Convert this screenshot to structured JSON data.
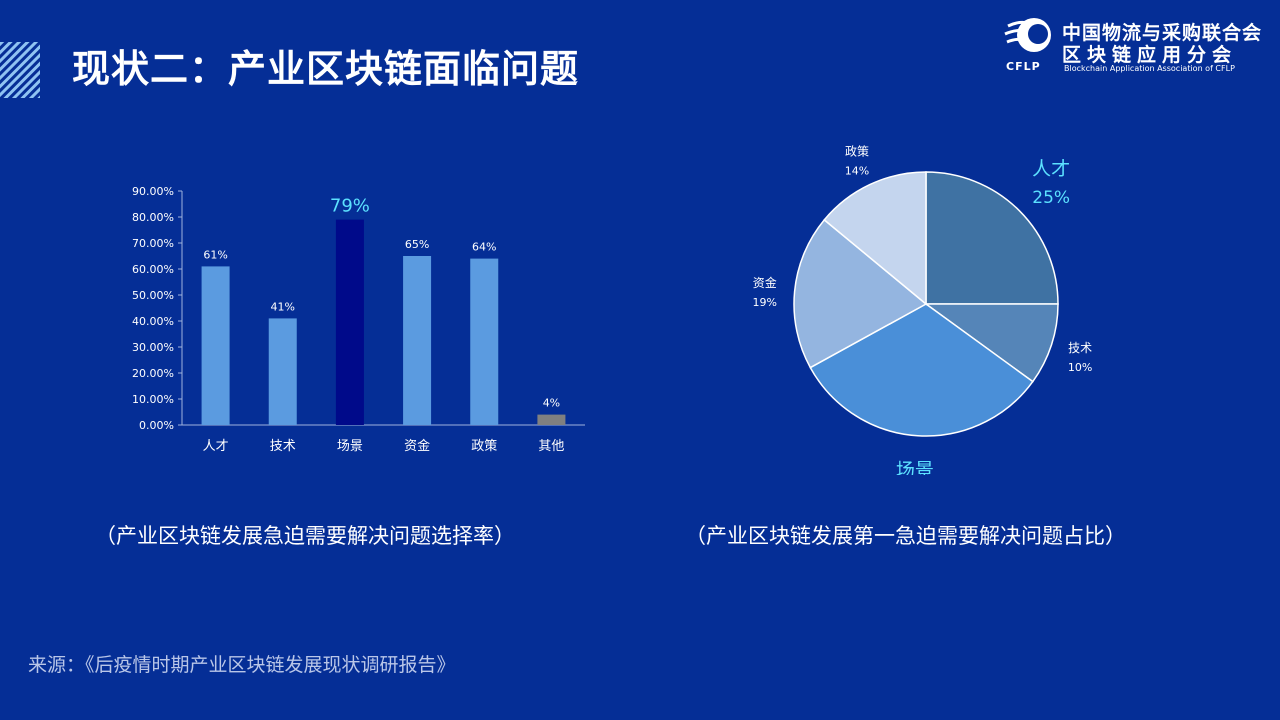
{
  "slide": {
    "title": "现状二：产业区块链面临问题",
    "source": "来源：《后疫情时期产业区块链发展现状调研报告》"
  },
  "logo": {
    "name_line1": "中国物流与采购联合会",
    "name_line2": "区块链应用分会",
    "abbr": "CFLP",
    "english": "Blockchain Application Association of CFLP"
  },
  "captions": {
    "bar": "（产业区块链发展急迫需要解决问题选择率）",
    "pie": "（产业区块链发展第一急迫需要解决问题占比）"
  },
  "chart_data": [
    {
      "type": "bar",
      "categories": [
        "人才",
        "技术",
        "场景",
        "资金",
        "政策",
        "其他"
      ],
      "values": [
        61,
        41,
        79,
        65,
        64,
        4
      ],
      "data_labels": [
        "61%",
        "41%",
        "79%",
        "65%",
        "64%",
        "4%"
      ],
      "ylim": [
        0,
        90
      ],
      "yticks": [
        "0.00%",
        "10.00%",
        "20.00%",
        "30.00%",
        "40.00%",
        "50.00%",
        "60.00%",
        "70.00%",
        "80.00%",
        "90.00%"
      ],
      "grid": false,
      "colors": {
        "default": "#5b9be0",
        "highlight": "#000a8a",
        "other": "#808080",
        "highlight_label": "#5ce1ff"
      },
      "highlight_index": 2
    },
    {
      "type": "pie",
      "slices": [
        {
          "label": "人才",
          "value": 25,
          "pct": "25%",
          "color": "#3f72a3",
          "highlight": true
        },
        {
          "label": "技术",
          "value": 10,
          "pct": "10%",
          "color": "#5585b8",
          "highlight": false
        },
        {
          "label": "场景",
          "value": 32,
          "pct": "32%",
          "color": "#4a8fd8",
          "highlight": true
        },
        {
          "label": "资金",
          "value": 19,
          "pct": "19%",
          "color": "#94b5e0",
          "highlight": false
        },
        {
          "label": "政策",
          "value": 14,
          "pct": "14%",
          "color": "#c4d5ee",
          "highlight": false
        }
      ],
      "start": "top, clockwise",
      "colors": {
        "highlight_label": "#5ce1ff",
        "edge": "#ffffff"
      }
    }
  ]
}
